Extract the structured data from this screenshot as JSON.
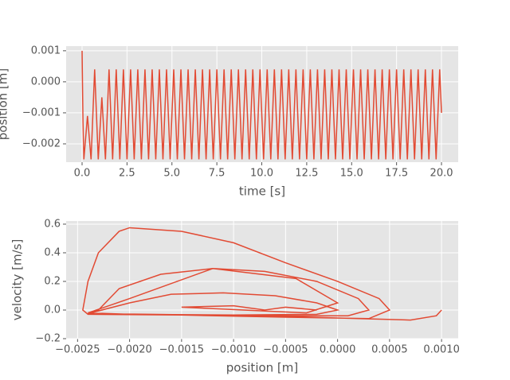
{
  "chart_data": [
    {
      "type": "line",
      "x_label": "time [s]",
      "y_label": "position [m]",
      "grid": true,
      "xlim": [
        -0.887,
        20.93
      ],
      "ylim": [
        -0.00259,
        0.00115
      ],
      "xticks": [
        {
          "value": 0,
          "label": "0.0"
        },
        {
          "value": 2.5,
          "label": "2.5"
        },
        {
          "value": 5,
          "label": "5.0"
        },
        {
          "value": 7.5,
          "label": "7.5"
        },
        {
          "value": 10,
          "label": "10.0"
        },
        {
          "value": 12.5,
          "label": "12.5"
        },
        {
          "value": 15,
          "label": "15.0"
        },
        {
          "value": 17.5,
          "label": "17.5"
        },
        {
          "value": 20,
          "label": "20.0"
        }
      ],
      "yticks": [
        {
          "value": -0.002,
          "label": "−0.002"
        },
        {
          "value": -0.001,
          "label": "−0.001"
        },
        {
          "value": 0,
          "label": "0.000"
        },
        {
          "value": 0.001,
          "label": "0.001"
        }
      ],
      "series": [
        {
          "color": "#e24a33",
          "x": [
            0,
            0.05,
            0.1,
            0.3,
            0.5,
            0.7,
            0.9,
            1.1,
            1.3,
            1.5,
            1.7,
            1.9,
            2.1,
            2.3,
            2.5,
            2.7,
            2.9,
            3.1,
            3.3,
            3.5,
            3.7,
            3.9,
            4.1,
            4.3,
            4.5,
            4.7,
            4.9,
            5.1,
            5.3,
            5.5,
            5.7,
            5.9,
            6.1,
            6.3,
            6.5,
            6.7,
            6.9,
            7.1,
            7.3,
            7.5,
            7.7,
            7.9,
            8.1,
            8.3,
            8.5,
            8.7,
            8.9,
            9.1,
            9.3,
            9.5,
            9.7,
            9.9,
            10.1,
            10.3,
            10.5,
            10.7,
            10.9,
            11.1,
            11.3,
            11.5,
            11.7,
            11.9,
            12.1,
            12.3,
            12.5,
            12.7,
            12.9,
            13.1,
            13.3,
            13.5,
            13.7,
            13.9,
            14.1,
            14.3,
            14.5,
            14.7,
            14.9,
            15.1,
            15.3,
            15.5,
            15.7,
            15.9,
            16.1,
            16.3,
            16.5,
            16.7,
            16.9,
            17.1,
            17.3,
            17.5,
            17.7,
            17.9,
            18.1,
            18.3,
            18.5,
            18.7,
            18.9,
            19.1,
            19.3,
            19.5,
            19.7,
            19.9,
            20.0
          ],
          "values": [
            0.001,
            -0.0013,
            -0.0025,
            -0.0011,
            -0.0025,
            0.0004,
            -0.0025,
            -0.0005,
            -0.0025,
            0.0004,
            -0.0025,
            0.0004,
            -0.0025,
            0.0004,
            -0.0025,
            0.0004,
            -0.0025,
            0.0004,
            -0.0025,
            0.0004,
            -0.0025,
            0.0004,
            -0.0025,
            0.0004,
            -0.0025,
            0.0004,
            -0.0025,
            0.0004,
            -0.0025,
            0.0004,
            -0.0025,
            0.0004,
            -0.0025,
            0.0004,
            -0.0025,
            0.0004,
            -0.0025,
            0.0004,
            -0.0025,
            0.0004,
            -0.0025,
            0.0004,
            -0.0025,
            0.0004,
            -0.0025,
            0.0004,
            -0.0025,
            0.0004,
            -0.0025,
            0.0004,
            -0.0025,
            0.0004,
            -0.0025,
            0.0004,
            -0.0025,
            0.0004,
            -0.0025,
            0.0004,
            -0.0025,
            0.0004,
            -0.0025,
            0.0004,
            -0.0025,
            0.0004,
            -0.0025,
            0.0004,
            -0.0025,
            0.0004,
            -0.0025,
            0.0004,
            -0.0025,
            0.0004,
            -0.0025,
            0.0004,
            -0.0025,
            0.0004,
            -0.0025,
            0.0004,
            -0.0025,
            0.0004,
            -0.0025,
            0.0004,
            -0.0025,
            0.0004,
            -0.0025,
            0.0004,
            -0.0025,
            0.0004,
            -0.0025,
            0.0004,
            -0.0025,
            0.0004,
            -0.0025,
            0.0004,
            -0.0025,
            0.0004,
            -0.0025,
            0.0004,
            -0.0025,
            0.0004,
            -0.0025,
            0.0004,
            -0.001
          ]
        }
      ]
    },
    {
      "type": "line",
      "x_label": "position [m]",
      "y_label": "velocity [m/s]",
      "grid": true,
      "xlim": [
        -0.00261,
        0.00116
      ],
      "ylim": [
        -0.2,
        0.622
      ],
      "xticks": [
        {
          "value": -0.0025,
          "label": "−0.0025"
        },
        {
          "value": -0.002,
          "label": "−0.0020"
        },
        {
          "value": -0.0015,
          "label": "−0.0015"
        },
        {
          "value": -0.001,
          "label": "−0.0010"
        },
        {
          "value": -0.0005,
          "label": "−0.0005"
        },
        {
          "value": 0,
          "label": "0.0000"
        },
        {
          "value": 0.0005,
          "label": "0.0005"
        },
        {
          "value": 0.001,
          "label": "0.0010"
        }
      ],
      "yticks": [
        {
          "value": -0.2,
          "label": "−0.2"
        },
        {
          "value": 0,
          "label": "0.0"
        },
        0.2,
        0.4,
        0.6
      ],
      "series": [
        {
          "color": "#e24a33",
          "x": [
            0.001,
            0.00095,
            0.0007,
            0.0002,
            -0.0005,
            -0.0015,
            -0.0024,
            -0.00245,
            -0.0024,
            -0.0023,
            -0.0021,
            -0.002,
            -0.0015,
            -0.001,
            -0.0005,
            0,
            0.0004,
            0.0005,
            0.0003,
            -0.0005,
            -0.0015,
            -0.0024,
            -0.0023,
            -0.0021,
            -0.0017,
            -0.0012,
            -0.0007,
            -0.0002,
            0.0002,
            0.0003,
            0.0001,
            -0.0008,
            -0.0018,
            -0.0024,
            -0.002,
            -0.0016,
            -0.0011,
            -0.0006,
            -0.0002,
            0,
            -0.0002,
            -0.001,
            -0.002,
            -0.0024,
            -0.002,
            -0.0012,
            -0.0004,
            0,
            -0.0003,
            -0.0015,
            -0.001,
            -0.0007,
            -0.0005,
            -0.0002
          ],
          "values": [
            0,
            -0.04,
            -0.07,
            -0.06,
            -0.045,
            -0.035,
            -0.03,
            0,
            0.2,
            0.4,
            0.55,
            0.575,
            0.55,
            0.47,
            0.33,
            0.2,
            0.08,
            0,
            -0.06,
            -0.05,
            -0.035,
            -0.025,
            0,
            0.15,
            0.25,
            0.29,
            0.27,
            0.2,
            0.08,
            0,
            -0.04,
            -0.04,
            -0.03,
            -0.025,
            0.05,
            0.11,
            0.12,
            0.1,
            0.05,
            0,
            -0.03,
            -0.035,
            -0.03,
            -0.02,
            0.08,
            0.29,
            0.22,
            0.05,
            -0.02,
            0.02,
            0.03,
            0,
            0.02,
            0
          ]
        }
      ]
    }
  ]
}
